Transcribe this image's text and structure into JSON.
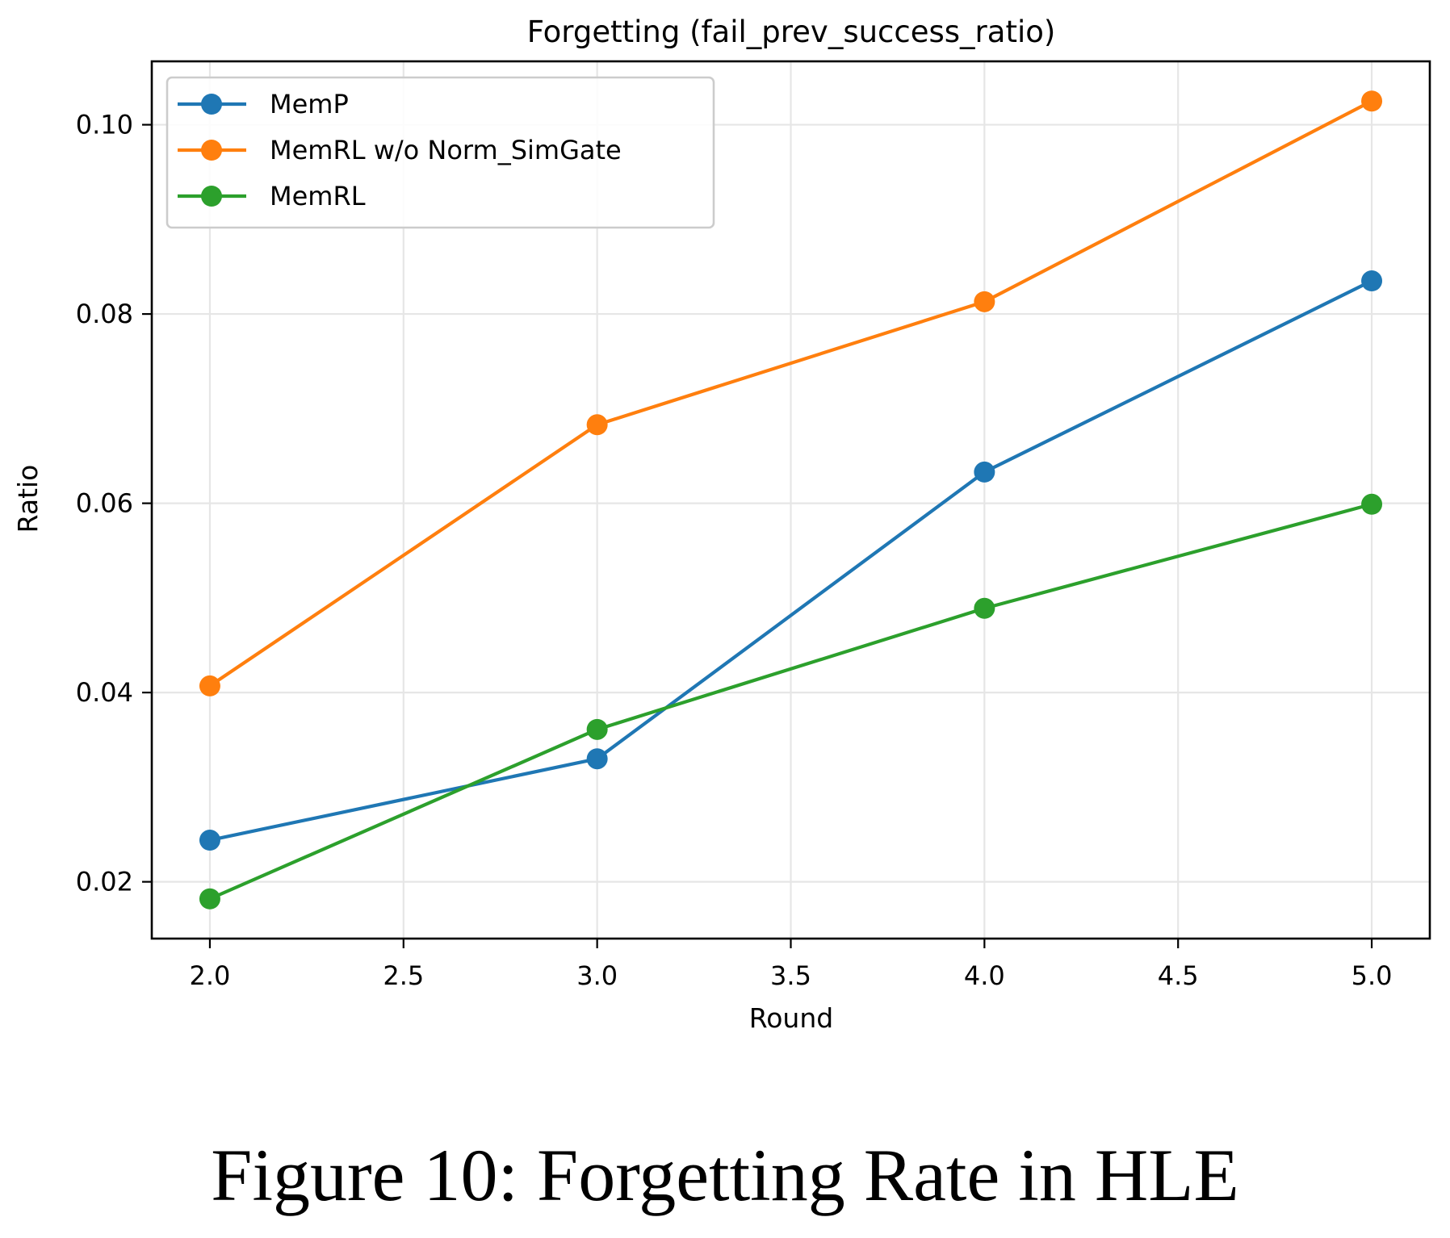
{
  "chart_data": {
    "type": "line",
    "title": "Forgetting (fail_prev_success_ratio)",
    "xlabel": "Round",
    "ylabel": "Ratio",
    "xlim": [
      1.85,
      5.15
    ],
    "ylim": [
      0.014,
      0.1067
    ],
    "xticks": [
      2.0,
      2.5,
      3.0,
      3.5,
      4.0,
      4.5,
      5.0
    ],
    "xtick_labels": [
      "2.0",
      "2.5",
      "3.0",
      "3.5",
      "4.0",
      "4.5",
      "5.0"
    ],
    "yticks": [
      0.02,
      0.04,
      0.06,
      0.08,
      0.1
    ],
    "ytick_labels": [
      "0.02",
      "0.04",
      "0.06",
      "0.08",
      "0.10"
    ],
    "grid": true,
    "legend_position": "upper-left",
    "x": [
      2.0,
      3.0,
      4.0,
      5.0
    ],
    "series": [
      {
        "name": "MemP",
        "color": "#1f77b4",
        "values": [
          0.0244,
          0.033,
          0.0633,
          0.0835
        ]
      },
      {
        "name": "MemRL w/o Norm_SimGate",
        "color": "#ff7f0e",
        "values": [
          0.0407,
          0.0683,
          0.0813,
          0.1025
        ]
      },
      {
        "name": "MemRL",
        "color": "#2ca02c",
        "values": [
          0.0182,
          0.0361,
          0.0489,
          0.0599
        ]
      }
    ]
  },
  "caption": "Figure 10: Forgetting Rate in HLE"
}
